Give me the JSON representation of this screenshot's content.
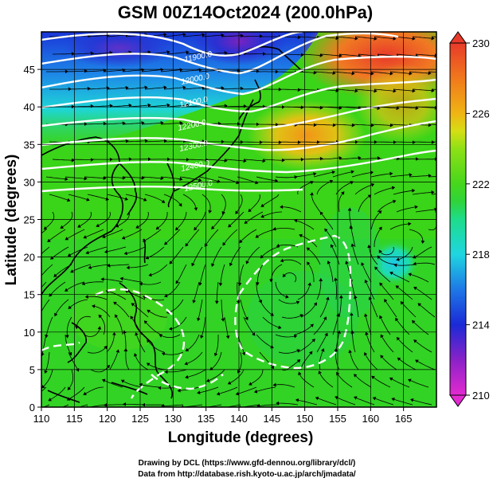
{
  "title": "GSM 00Z14Oct2024 (200.0hPa)",
  "xlabel": "Longitude (degrees)",
  "ylabel": "Latitude  (degrees)",
  "credits": [
    "Drawing by DCL (https://www.gfd-dennou.org/library/dcl/)",
    "Data from http://database.rish.kyoto-u.ac.jp/arch/jmadata/"
  ],
  "x_ticks": [
    "110",
    "115",
    "120",
    "125",
    "130",
    "135",
    "140",
    "145",
    "150",
    "155",
    "160",
    "165"
  ],
  "y_ticks": [
    "0",
    "5",
    "10",
    "15",
    "20",
    "25",
    "30",
    "35",
    "40",
    "45"
  ],
  "colorbar": {
    "ticks": [
      "230",
      "226",
      "222",
      "218",
      "214",
      "210"
    ],
    "min": 210,
    "max": 230,
    "stops": [
      {
        "v": 210,
        "c": "#e32ad1"
      },
      {
        "v": 212,
        "c": "#8a22c8"
      },
      {
        "v": 214,
        "c": "#1a2ad6"
      },
      {
        "v": 216,
        "c": "#1e78e6"
      },
      {
        "v": 218,
        "c": "#1fd6e0"
      },
      {
        "v": 220,
        "c": "#1edc8a"
      },
      {
        "v": 221,
        "c": "#2fd43a"
      },
      {
        "v": 222,
        "c": "#46d61c"
      },
      {
        "v": 224,
        "c": "#8ee016"
      },
      {
        "v": 225,
        "c": "#d6de14"
      },
      {
        "v": 226,
        "c": "#f0b414"
      },
      {
        "v": 228,
        "c": "#f0781c"
      },
      {
        "v": 230,
        "c": "#e83a2a"
      }
    ]
  },
  "contour_labels": [
    "11900.0",
    "12000.0",
    "12100.0",
    "12200.0",
    "12300.0",
    "12400.0",
    "12500.0"
  ],
  "chart_data": {
    "type": "heatmap",
    "title": "GSM 00Z14Oct2024 (200.0hPa)",
    "xlabel": "Longitude (degrees)",
    "ylabel": "Latitude  (degrees)",
    "xlim": [
      110,
      170
    ],
    "ylim": [
      0,
      50
    ],
    "colorbar_range": [
      210,
      230
    ],
    "colorbar_ticks": [
      210,
      214,
      218,
      222,
      226,
      230
    ],
    "field_estimates": [
      {
        "lon": 120,
        "lat": 45,
        "value": 216
      },
      {
        "lon": 133,
        "lat": 48,
        "value": 212
      },
      {
        "lon": 138,
        "lat": 47,
        "value": 213
      },
      {
        "lon": 150,
        "lat": 37,
        "value": 227
      },
      {
        "lon": 157,
        "lat": 47,
        "value": 229
      },
      {
        "lon": 163,
        "lat": 43,
        "value": 223
      },
      {
        "lon": 161,
        "lat": 21,
        "value": 218
      },
      {
        "lon": 140,
        "lat": 15,
        "value": 222
      },
      {
        "lon": 120,
        "lat": 10,
        "value": 222
      },
      {
        "lon": 125,
        "lat": 30,
        "value": 221
      }
    ]
  }
}
